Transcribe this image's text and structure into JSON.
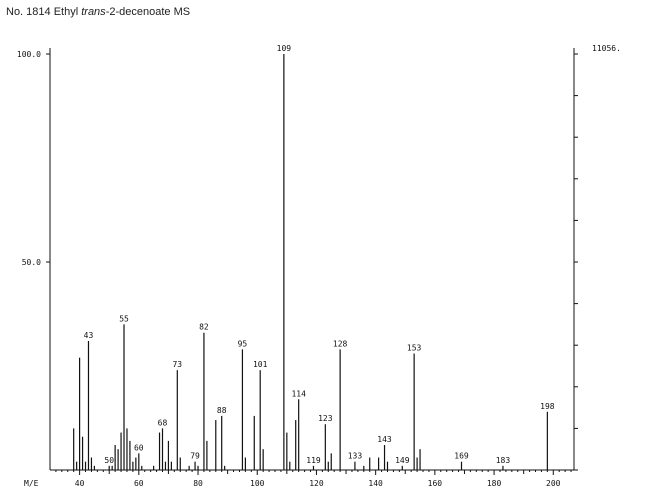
{
  "title": {
    "prefix": "No. 1814 Ethyl ",
    "italic": "trans",
    "suffix": "-2-decenoate MS"
  },
  "chart_data": {
    "type": "bar",
    "title": "No. 1814 Ethyl trans-2-decenoate MS",
    "xlabel": "M/E",
    "ylabel": "",
    "xlim": [
      30,
      207
    ],
    "ylim": [
      0,
      100
    ],
    "x_ticks": [
      40,
      60,
      80,
      100,
      120,
      140,
      160,
      180,
      200
    ],
    "y_ticks": [
      {
        "value": 100,
        "label": "100.0"
      },
      {
        "value": 50,
        "label": "50.0"
      }
    ],
    "right_axis_label": "11056.",
    "peaks": [
      {
        "mz": 38,
        "intensity": 10
      },
      {
        "mz": 39,
        "intensity": 2
      },
      {
        "mz": 40,
        "intensity": 27
      },
      {
        "mz": 41,
        "intensity": 8
      },
      {
        "mz": 42,
        "intensity": 2
      },
      {
        "mz": 43,
        "intensity": 31,
        "label": "43"
      },
      {
        "mz": 44,
        "intensity": 3
      },
      {
        "mz": 45,
        "intensity": 1
      },
      {
        "mz": 50,
        "intensity": 1,
        "label": "50"
      },
      {
        "mz": 51,
        "intensity": 1
      },
      {
        "mz": 52,
        "intensity": 6
      },
      {
        "mz": 53,
        "intensity": 5
      },
      {
        "mz": 54,
        "intensity": 9
      },
      {
        "mz": 55,
        "intensity": 35,
        "label": "55"
      },
      {
        "mz": 56,
        "intensity": 10
      },
      {
        "mz": 57,
        "intensity": 7
      },
      {
        "mz": 58,
        "intensity": 2
      },
      {
        "mz": 59,
        "intensity": 3
      },
      {
        "mz": 60,
        "intensity": 4,
        "label": "60"
      },
      {
        "mz": 61,
        "intensity": 1
      },
      {
        "mz": 65,
        "intensity": 1
      },
      {
        "mz": 67,
        "intensity": 9
      },
      {
        "mz": 68,
        "intensity": 10,
        "label": "68"
      },
      {
        "mz": 69,
        "intensity": 2
      },
      {
        "mz": 70,
        "intensity": 7
      },
      {
        "mz": 71,
        "intensity": 2
      },
      {
        "mz": 73,
        "intensity": 24,
        "label": "73"
      },
      {
        "mz": 74,
        "intensity": 3
      },
      {
        "mz": 77,
        "intensity": 1
      },
      {
        "mz": 79,
        "intensity": 2,
        "label": "79"
      },
      {
        "mz": 80,
        "intensity": 1
      },
      {
        "mz": 82,
        "intensity": 33,
        "label": "82"
      },
      {
        "mz": 83,
        "intensity": 7
      },
      {
        "mz": 86,
        "intensity": 12
      },
      {
        "mz": 88,
        "intensity": 13,
        "label": "88"
      },
      {
        "mz": 89,
        "intensity": 1
      },
      {
        "mz": 95,
        "intensity": 29,
        "label": "95"
      },
      {
        "mz": 96,
        "intensity": 3
      },
      {
        "mz": 99,
        "intensity": 13
      },
      {
        "mz": 101,
        "intensity": 24,
        "label": "101"
      },
      {
        "mz": 102,
        "intensity": 5
      },
      {
        "mz": 109,
        "intensity": 100,
        "label": "109"
      },
      {
        "mz": 110,
        "intensity": 9
      },
      {
        "mz": 111,
        "intensity": 2
      },
      {
        "mz": 113,
        "intensity": 12
      },
      {
        "mz": 114,
        "intensity": 17,
        "label": "114"
      },
      {
        "mz": 119,
        "intensity": 1,
        "label": "119"
      },
      {
        "mz": 123,
        "intensity": 11,
        "label": "123"
      },
      {
        "mz": 124,
        "intensity": 2
      },
      {
        "mz": 125,
        "intensity": 4
      },
      {
        "mz": 128,
        "intensity": 29,
        "label": "128"
      },
      {
        "mz": 133,
        "intensity": 2,
        "label": "133"
      },
      {
        "mz": 136,
        "intensity": 1
      },
      {
        "mz": 138,
        "intensity": 3
      },
      {
        "mz": 141,
        "intensity": 3
      },
      {
        "mz": 143,
        "intensity": 6,
        "label": "143"
      },
      {
        "mz": 144,
        "intensity": 2
      },
      {
        "mz": 149,
        "intensity": 1,
        "label": "149"
      },
      {
        "mz": 153,
        "intensity": 28,
        "label": "153"
      },
      {
        "mz": 154,
        "intensity": 3
      },
      {
        "mz": 155,
        "intensity": 5
      },
      {
        "mz": 169,
        "intensity": 2,
        "label": "169"
      },
      {
        "mz": 183,
        "intensity": 1,
        "label": "183"
      },
      {
        "mz": 198,
        "intensity": 14,
        "label": "198"
      }
    ]
  }
}
